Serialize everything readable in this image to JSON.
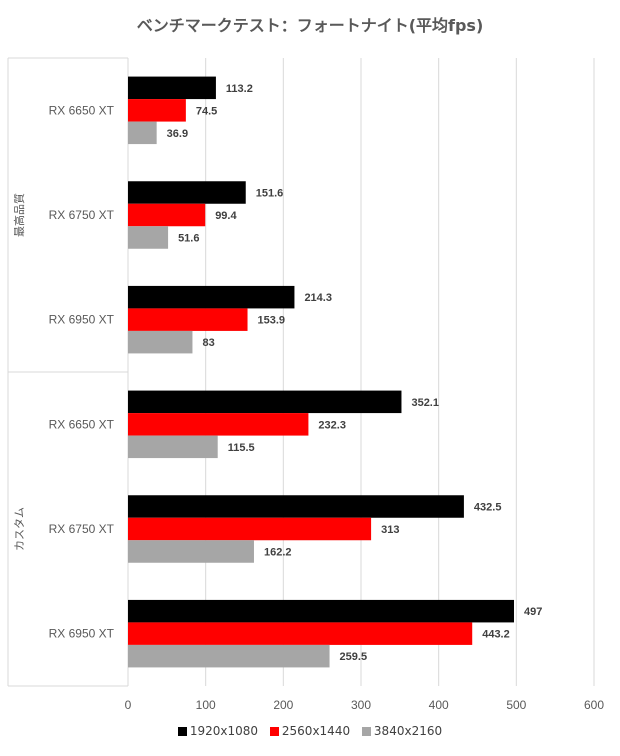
{
  "chart_data": {
    "type": "bar",
    "orientation": "horizontal",
    "title": "ベンチマークテスト：フォートナイト(平均fps)",
    "groups": [
      {
        "label": "最高品質",
        "categories": [
          "RX 6650 XT",
          "RX 6750 XT",
          "RX 6950 XT"
        ]
      },
      {
        "label": "カスタム",
        "categories": [
          "RX 6650 XT",
          "RX 6750 XT",
          "RX 6950 XT"
        ]
      }
    ],
    "series": [
      {
        "name": "1920x1080",
        "color": "#000000",
        "values": [
          113.2,
          151.6,
          214.3,
          352.1,
          432.5,
          497
        ]
      },
      {
        "name": "2560x1440",
        "color": "#ff0000",
        "values": [
          74.5,
          99.4,
          153.9,
          232.3,
          313,
          443.2
        ]
      },
      {
        "name": "3840x2160",
        "color": "#a6a6a6",
        "values": [
          36.9,
          51.6,
          83,
          115.5,
          162.2,
          259.5
        ]
      }
    ],
    "xlim": [
      0,
      600
    ],
    "xticks": [
      0,
      100,
      200,
      300,
      400,
      500,
      600
    ],
    "grid": true,
    "data_labels": true,
    "legend_position": "bottom"
  }
}
